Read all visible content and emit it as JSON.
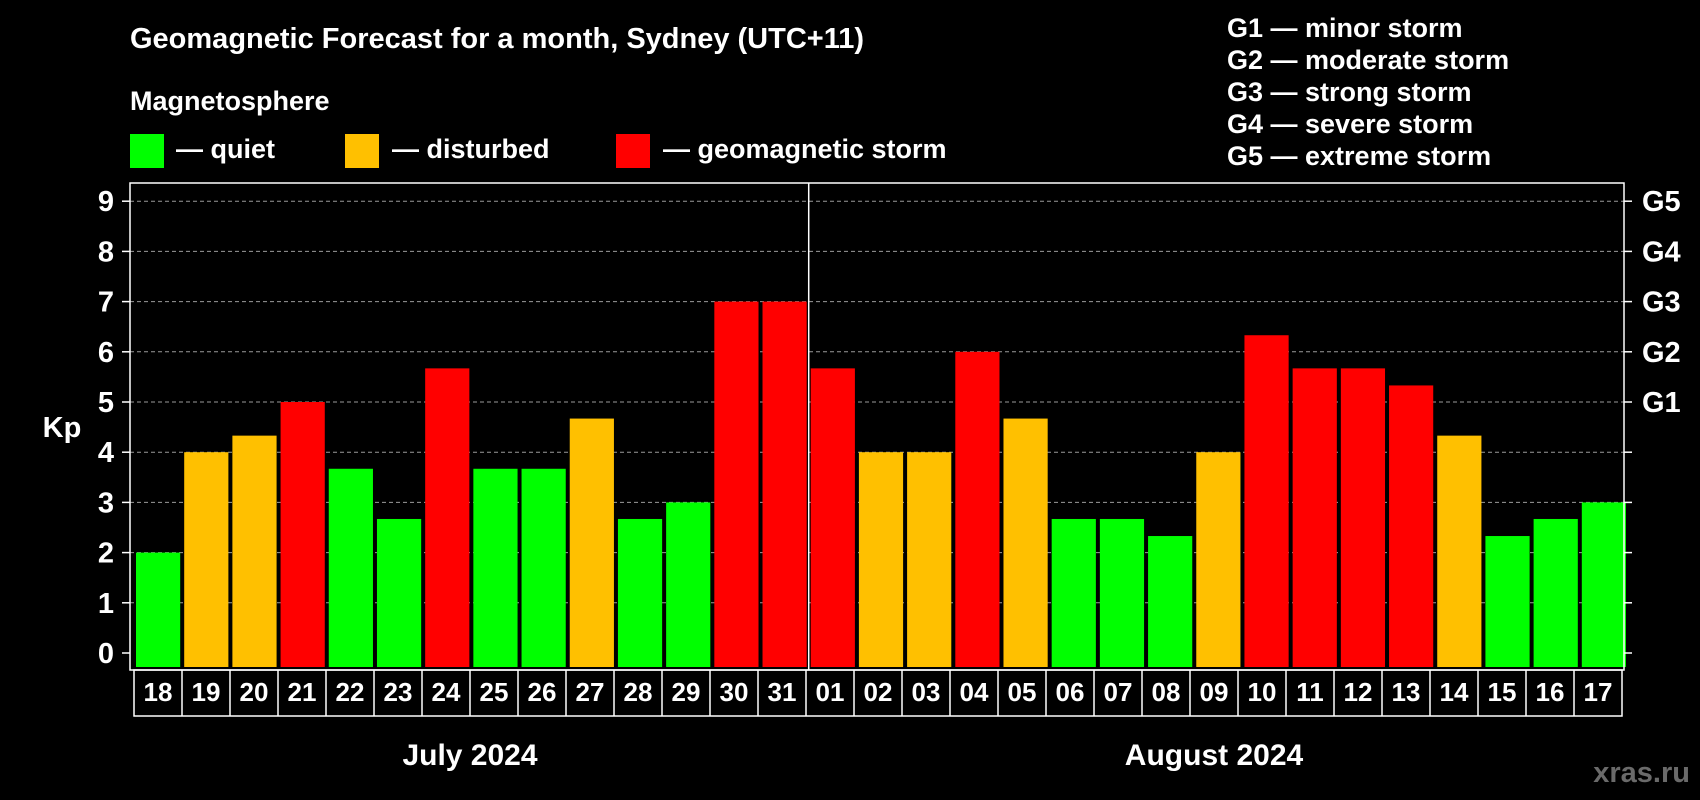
{
  "colors": {
    "quiet": "#00ff00",
    "disturbed": "#ffc000",
    "storm": "#ff0000",
    "background": "#000000",
    "axis": "#ffffff"
  },
  "watermark": "xras.ru",
  "chart_data": {
    "type": "bar",
    "title": "Geomagnetic Forecast for a month, Sydney (UTC+11)",
    "subtitle": "Magnetosphere",
    "ylabel": "Kp",
    "ylim": [
      0,
      9
    ],
    "y_ticks": [
      "0",
      "1",
      "2",
      "3",
      "4",
      "5",
      "6",
      "7",
      "8",
      "9"
    ],
    "grid": true,
    "legend": [
      {
        "key": "quiet",
        "label": "— quiet"
      },
      {
        "key": "disturbed",
        "label": "— disturbed"
      },
      {
        "key": "storm",
        "label": "— geomagnetic storm"
      }
    ],
    "storm_scale": [
      "G1 — minor storm",
      "G2 — moderate storm",
      "G3 — strong storm",
      "G4 — severe storm",
      "G5 — extreme storm"
    ],
    "right_axis": [
      {
        "label": "G1",
        "kp": 5
      },
      {
        "label": "G2",
        "kp": 6
      },
      {
        "label": "G3",
        "kp": 7
      },
      {
        "label": "G4",
        "kp": 8
      },
      {
        "label": "G5",
        "kp": 9
      }
    ],
    "months": [
      {
        "label": "July 2024",
        "start": 0,
        "end": 13
      },
      {
        "label": "August 2024",
        "start": 14,
        "end": 30
      }
    ],
    "categories": [
      "18",
      "19",
      "20",
      "21",
      "22",
      "23",
      "24",
      "25",
      "26",
      "27",
      "28",
      "29",
      "30",
      "31",
      "01",
      "02",
      "03",
      "04",
      "05",
      "06",
      "07",
      "08",
      "09",
      "10",
      "11",
      "12",
      "13",
      "14",
      "15",
      "16",
      "17"
    ],
    "values": [
      2.0,
      4.0,
      4.33,
      5.0,
      3.67,
      2.67,
      5.67,
      3.67,
      3.67,
      4.67,
      2.67,
      3.0,
      7.0,
      7.0,
      5.67,
      4.0,
      4.0,
      6.0,
      4.67,
      2.67,
      2.67,
      2.33,
      4.0,
      6.33,
      5.67,
      5.67,
      5.33,
      4.33,
      2.33,
      2.67,
      3.0
    ],
    "status": [
      "quiet",
      "disturbed",
      "disturbed",
      "storm",
      "quiet",
      "quiet",
      "storm",
      "quiet",
      "quiet",
      "disturbed",
      "quiet",
      "quiet",
      "storm",
      "storm",
      "storm",
      "disturbed",
      "disturbed",
      "storm",
      "disturbed",
      "quiet",
      "quiet",
      "quiet",
      "disturbed",
      "storm",
      "storm",
      "storm",
      "storm",
      "disturbed",
      "quiet",
      "quiet",
      "quiet"
    ]
  }
}
